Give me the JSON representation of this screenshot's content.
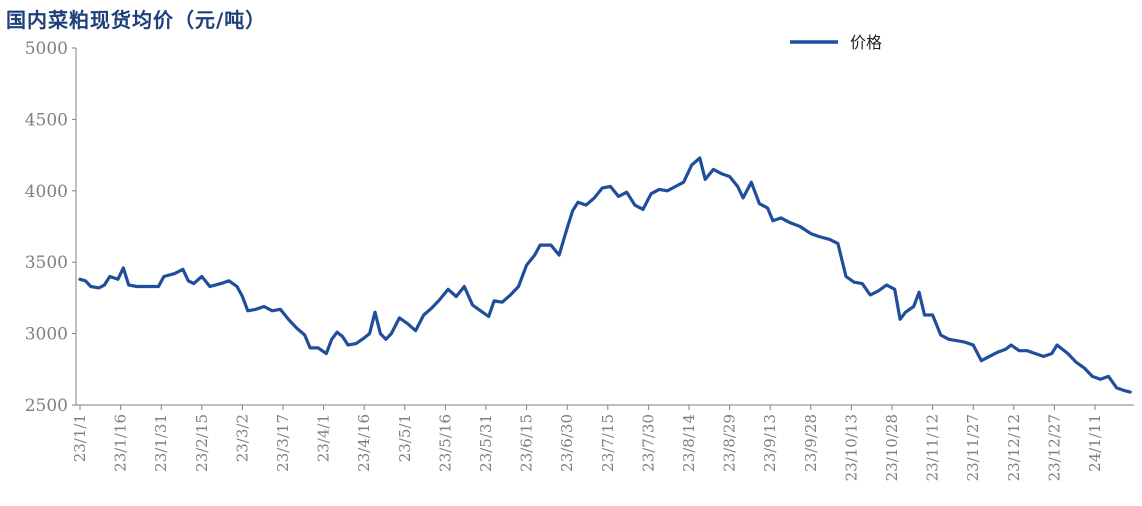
{
  "chart_data": {
    "type": "line",
    "title": "国内菜粕现货均价（元/吨）",
    "xlabel": "",
    "ylabel": "",
    "ylim": [
      2500,
      5000
    ],
    "yticks": [
      2500,
      3000,
      3500,
      4000,
      4500,
      5000
    ],
    "xtick_labels": [
      "23/1/1",
      "23/1/16",
      "23/1/31",
      "23/2/15",
      "23/3/2",
      "23/3/17",
      "23/4/1",
      "23/4/16",
      "23/5/1",
      "23/5/16",
      "23/5/31",
      "23/6/15",
      "23/6/30",
      "23/7/15",
      "23/7/30",
      "23/8/14",
      "23/8/29",
      "23/9/13",
      "23/9/28",
      "23/10/13",
      "23/10/28",
      "23/11/12",
      "23/11/27",
      "23/12/12",
      "23/12/27",
      "24/1/11"
    ],
    "grid": false,
    "legend_position": "top-right",
    "colors": {
      "series": "#1f4e9a",
      "axis": "#7f7f7f"
    },
    "series": [
      {
        "name": "价格",
        "points": [
          [
            "23/1/1",
            3380
          ],
          [
            "23/1/3",
            3370
          ],
          [
            "23/1/5",
            3330
          ],
          [
            "23/1/8",
            3320
          ],
          [
            "23/1/10",
            3340
          ],
          [
            "23/1/12",
            3400
          ],
          [
            "23/1/15",
            3380
          ],
          [
            "23/1/17",
            3460
          ],
          [
            "23/1/19",
            3340
          ],
          [
            "23/1/22",
            3330
          ],
          [
            "23/1/26",
            3330
          ],
          [
            "23/1/30",
            3330
          ],
          [
            "23/2/1",
            3400
          ],
          [
            "23/2/5",
            3420
          ],
          [
            "23/2/8",
            3450
          ],
          [
            "23/2/10",
            3370
          ],
          [
            "23/2/12",
            3350
          ],
          [
            "23/2/15",
            3400
          ],
          [
            "23/2/18",
            3330
          ],
          [
            "23/2/22",
            3350
          ],
          [
            "23/2/25",
            3370
          ],
          [
            "23/2/28",
            3330
          ],
          [
            "23/3/2",
            3260
          ],
          [
            "23/3/4",
            3160
          ],
          [
            "23/3/7",
            3170
          ],
          [
            "23/3/10",
            3190
          ],
          [
            "23/3/13",
            3160
          ],
          [
            "23/3/16",
            3170
          ],
          [
            "23/3/19",
            3100
          ],
          [
            "23/3/22",
            3040
          ],
          [
            "23/3/25",
            2990
          ],
          [
            "23/3/27",
            2900
          ],
          [
            "23/3/30",
            2900
          ],
          [
            "23/4/2",
            2860
          ],
          [
            "23/4/4",
            2960
          ],
          [
            "23/4/6",
            3010
          ],
          [
            "23/4/8",
            2980
          ],
          [
            "23/4/10",
            2920
          ],
          [
            "23/4/13",
            2930
          ],
          [
            "23/4/16",
            2970
          ],
          [
            "23/4/18",
            3000
          ],
          [
            "23/4/20",
            3150
          ],
          [
            "23/4/22",
            3000
          ],
          [
            "23/4/24",
            2960
          ],
          [
            "23/4/26",
            3000
          ],
          [
            "23/4/29",
            3110
          ],
          [
            "23/5/2",
            3070
          ],
          [
            "23/5/5",
            3020
          ],
          [
            "23/5/8",
            3130
          ],
          [
            "23/5/11",
            3180
          ],
          [
            "23/5/14",
            3240
          ],
          [
            "23/5/17",
            3310
          ],
          [
            "23/5/20",
            3260
          ],
          [
            "23/5/23",
            3330
          ],
          [
            "23/5/26",
            3200
          ],
          [
            "23/5/29",
            3160
          ],
          [
            "23/6/1",
            3120
          ],
          [
            "23/6/3",
            3230
          ],
          [
            "23/6/6",
            3220
          ],
          [
            "23/6/9",
            3270
          ],
          [
            "23/6/12",
            3330
          ],
          [
            "23/6/15",
            3480
          ],
          [
            "23/6/18",
            3550
          ],
          [
            "23/6/20",
            3620
          ],
          [
            "23/6/24",
            3620
          ],
          [
            "23/6/27",
            3550
          ],
          [
            "23/6/30",
            3740
          ],
          [
            "23/7/2",
            3860
          ],
          [
            "23/7/4",
            3920
          ],
          [
            "23/7/7",
            3900
          ],
          [
            "23/7/10",
            3950
          ],
          [
            "23/7/13",
            4020
          ],
          [
            "23/7/16",
            4030
          ],
          [
            "23/7/19",
            3960
          ],
          [
            "23/7/22",
            3990
          ],
          [
            "23/7/25",
            3900
          ],
          [
            "23/7/28",
            3870
          ],
          [
            "23/7/31",
            3980
          ],
          [
            "23/8/3",
            4010
          ],
          [
            "23/8/6",
            4000
          ],
          [
            "23/8/9",
            4030
          ],
          [
            "23/8/12",
            4060
          ],
          [
            "23/8/15",
            4180
          ],
          [
            "23/8/18",
            4230
          ],
          [
            "23/8/20",
            4080
          ],
          [
            "23/8/23",
            4150
          ],
          [
            "23/8/26",
            4120
          ],
          [
            "23/8/29",
            4100
          ],
          [
            "23/9/1",
            4030
          ],
          [
            "23/9/3",
            3950
          ],
          [
            "23/9/6",
            4060
          ],
          [
            "23/9/9",
            3910
          ],
          [
            "23/9/12",
            3880
          ],
          [
            "23/9/14",
            3790
          ],
          [
            "23/9/17",
            3810
          ],
          [
            "23/9/20",
            3780
          ],
          [
            "23/9/24",
            3750
          ],
          [
            "23/9/28",
            3700
          ],
          [
            "23/10/1",
            3680
          ],
          [
            "23/10/5",
            3660
          ],
          [
            "23/10/8",
            3630
          ],
          [
            "23/10/11",
            3400
          ],
          [
            "23/10/14",
            3360
          ],
          [
            "23/10/17",
            3350
          ],
          [
            "23/10/20",
            3270
          ],
          [
            "23/10/23",
            3300
          ],
          [
            "23/10/26",
            3340
          ],
          [
            "23/10/29",
            3310
          ],
          [
            "23/10/31",
            3100
          ],
          [
            "23/11/2",
            3150
          ],
          [
            "23/11/5",
            3190
          ],
          [
            "23/11/7",
            3290
          ],
          [
            "23/11/9",
            3130
          ],
          [
            "23/11/12",
            3130
          ],
          [
            "23/11/15",
            2990
          ],
          [
            "23/11/18",
            2960
          ],
          [
            "23/11/21",
            2950
          ],
          [
            "23/11/24",
            2940
          ],
          [
            "23/11/27",
            2920
          ],
          [
            "23/11/30",
            2810
          ],
          [
            "23/12/3",
            2840
          ],
          [
            "23/12/6",
            2870
          ],
          [
            "23/12/9",
            2890
          ],
          [
            "23/12/11",
            2920
          ],
          [
            "23/12/14",
            2880
          ],
          [
            "23/12/17",
            2880
          ],
          [
            "23/12/20",
            2860
          ],
          [
            "23/12/23",
            2840
          ],
          [
            "23/12/26",
            2860
          ],
          [
            "23/12/28",
            2920
          ],
          [
            "24/1/1",
            2860
          ],
          [
            "24/1/4",
            2800
          ],
          [
            "24/1/7",
            2760
          ],
          [
            "24/1/10",
            2700
          ],
          [
            "24/1/13",
            2680
          ],
          [
            "24/1/16",
            2700
          ],
          [
            "24/1/19",
            2620
          ],
          [
            "24/1/22",
            2600
          ],
          [
            "24/1/24",
            2590
          ]
        ]
      }
    ]
  }
}
